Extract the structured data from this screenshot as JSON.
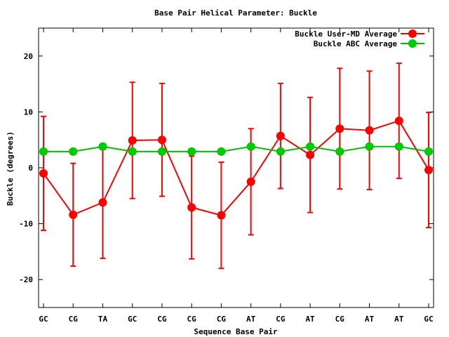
{
  "chart_data": {
    "type": "line",
    "title": "Base Pair Helical Parameter: Buckle",
    "xlabel": "Sequence Base Pair",
    "ylabel": "Buckle (degrees)",
    "categories": [
      "GC",
      "CG",
      "TA",
      "GC",
      "CG",
      "CG",
      "CG",
      "AT",
      "CG",
      "AT",
      "CG",
      "AT",
      "AT",
      "GC"
    ],
    "ylim": [
      -25,
      25
    ],
    "yticks": [
      -20,
      -10,
      0,
      10,
      20
    ],
    "grid": false,
    "legend_position": "top-right",
    "series": [
      {
        "name": "Buckle User-MD Average",
        "color": "#ff0000",
        "marker_color": "#ff0000",
        "values": [
          -1.0,
          -8.4,
          -6.2,
          4.9,
          5.0,
          -7.1,
          -8.5,
          -2.5,
          5.7,
          2.3,
          7.0,
          6.7,
          8.4,
          -0.4
        ],
        "error": [
          10.2,
          9.2,
          10.0,
          10.4,
          10.1,
          9.2,
          9.5,
          9.5,
          9.4,
          10.3,
          10.8,
          10.6,
          10.3,
          10.3
        ]
      },
      {
        "name": "Buckle ABC Average",
        "color": "#00c000",
        "marker_color": "#00cc00",
        "values": [
          2.9,
          2.9,
          3.8,
          2.9,
          2.9,
          2.9,
          2.9,
          3.8,
          2.9,
          3.8,
          2.9,
          3.8,
          3.8,
          2.9
        ]
      }
    ]
  }
}
